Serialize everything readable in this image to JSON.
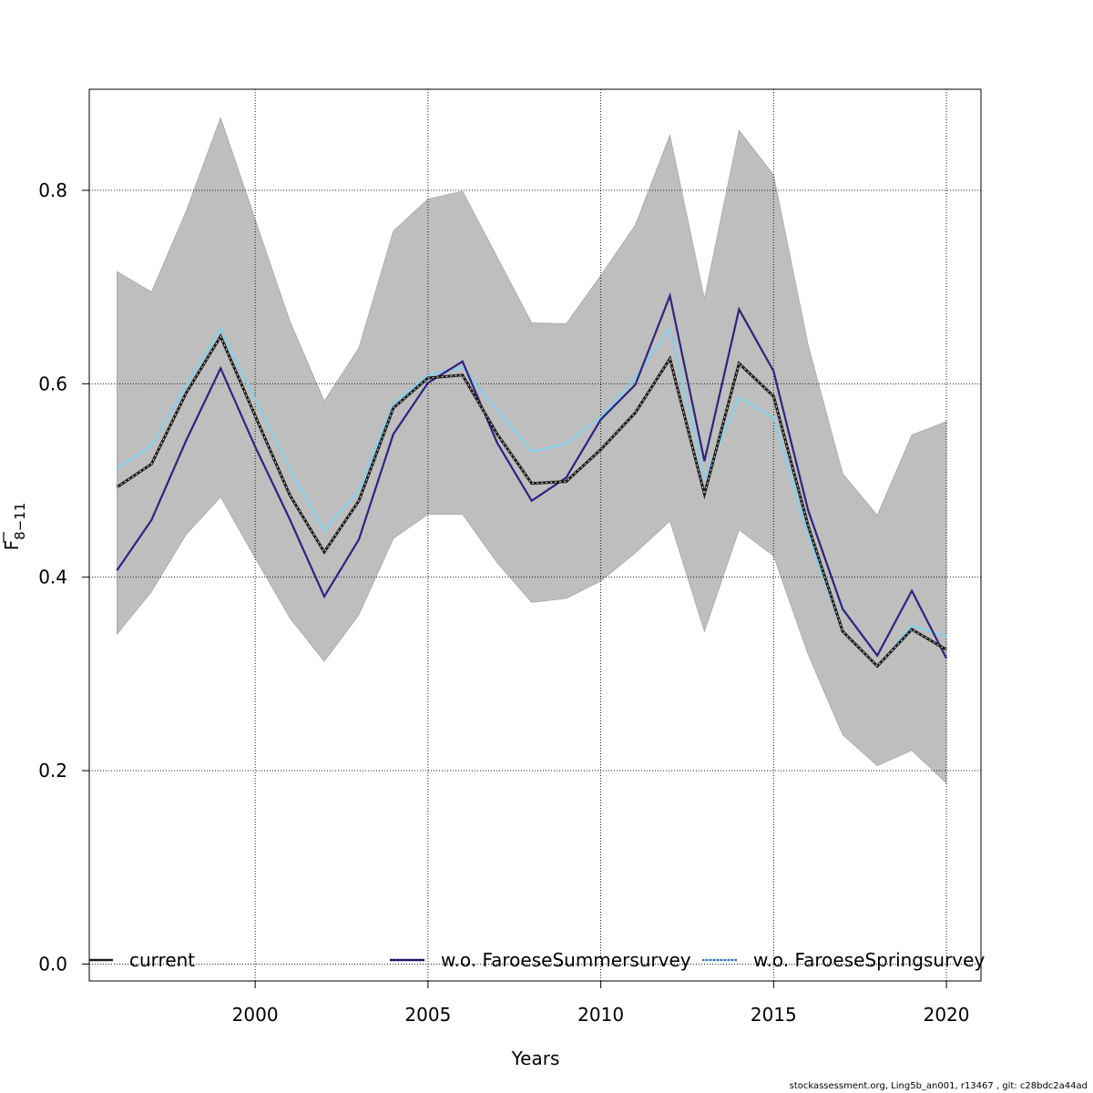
{
  "chart_data": {
    "type": "line",
    "title": "",
    "xlabel": "Years",
    "ylabel": "F",
    "ylabel_subscript": "8−11",
    "xlim": [
      1995.2,
      2021.0
    ],
    "ylim": [
      -0.0175,
      0.9045
    ],
    "x_ticks": [
      2000,
      2005,
      2010,
      2015,
      2020
    ],
    "x_tick_labels": [
      "2000",
      "2005",
      "2010",
      "2015",
      "2020"
    ],
    "y_ticks": [
      0.0,
      0.2,
      0.4,
      0.6,
      0.8
    ],
    "y_tick_labels": [
      "0.0",
      "0.2",
      "0.4",
      "0.6",
      "0.8"
    ],
    "grid": true,
    "x": [
      1996,
      1997,
      1998,
      1999,
      2000,
      2001,
      2002,
      2003,
      2004,
      2005,
      2006,
      2007,
      2008,
      2009,
      2010,
      2011,
      2012,
      2013,
      2014,
      2015,
      2016,
      2017,
      2018,
      2019,
      2020
    ],
    "band": {
      "name": "confidence interval",
      "color": "#bebebe",
      "lower": [
        0.341,
        0.385,
        0.444,
        0.483,
        0.42,
        0.358,
        0.313,
        0.361,
        0.44,
        0.465,
        0.465,
        0.415,
        0.374,
        0.378,
        0.396,
        0.425,
        0.458,
        0.344,
        0.449,
        0.422,
        0.32,
        0.237,
        0.205,
        0.221,
        0.187
      ],
      "upper": [
        0.716,
        0.695,
        0.778,
        0.875,
        0.77,
        0.665,
        0.582,
        0.637,
        0.758,
        0.791,
        0.799,
        0.731,
        0.663,
        0.662,
        0.712,
        0.764,
        0.857,
        0.688,
        0.862,
        0.816,
        0.64,
        0.507,
        0.464,
        0.547,
        0.561
      ]
    },
    "series": [
      {
        "name": "current",
        "color": "#1a1a1a",
        "values": [
          0.493,
          0.517,
          0.59,
          0.649,
          0.567,
          0.485,
          0.426,
          0.479,
          0.575,
          0.606,
          0.609,
          0.548,
          0.497,
          0.499,
          0.532,
          0.57,
          0.626,
          0.486,
          0.621,
          0.587,
          0.453,
          0.344,
          0.308,
          0.346,
          0.325
        ]
      },
      {
        "name": "w.o. FaroeseSummersurvey",
        "color": "#2c2480",
        "values": [
          0.407,
          0.459,
          0.541,
          0.616,
          0.535,
          0.46,
          0.38,
          0.439,
          0.548,
          0.601,
          0.623,
          0.539,
          0.479,
          0.503,
          0.563,
          0.599,
          0.691,
          0.52,
          0.677,
          0.613,
          0.469,
          0.367,
          0.319,
          0.386,
          0.316
        ]
      },
      {
        "name": "w.o. FaroeseSpringsurvey",
        "color": "#87ceeb",
        "values": [
          0.512,
          0.536,
          0.598,
          0.657,
          0.584,
          0.512,
          0.448,
          0.49,
          0.579,
          0.609,
          0.617,
          0.573,
          0.53,
          0.538,
          0.565,
          0.607,
          0.657,
          0.503,
          0.586,
          0.565,
          0.443,
          0.344,
          0.307,
          0.35,
          0.339
        ]
      }
    ],
    "legend": {
      "position": "bottom",
      "entries": [
        "current",
        "w.o. FaroeseSummersurvey",
        "w.o. FaroeseSpringsurvey"
      ]
    }
  },
  "footer": {
    "text": "stockassessment.org, Ling5b_an001, r13467 , git: c28bdc2a44ad"
  }
}
